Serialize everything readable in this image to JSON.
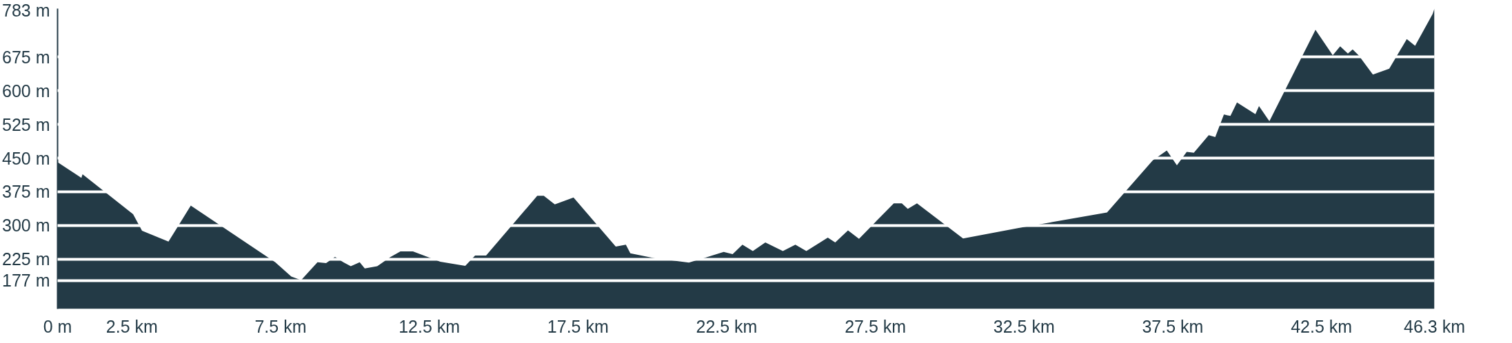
{
  "chart_data": {
    "type": "area",
    "x": [
      0,
      0.8,
      0.84,
      2.54,
      2.84,
      3.73,
      4.48,
      7.32,
      7.86,
      8.19,
      8.74,
      9.03,
      9.33,
      9.61,
      9.86,
      10.16,
      10.33,
      10.75,
      11.2,
      11.53,
      11.95,
      12.87,
      13.71,
      14.04,
      14.41,
      16.13,
      16.35,
      16.72,
      17.35,
      18.77,
      19.11,
      19.26,
      20.06,
      21.23,
      22.4,
      22.7,
      23.03,
      23.38,
      23.8,
      24.39,
      24.81,
      25.18,
      25.9,
      26.15,
      26.58,
      26.95,
      27.42,
      28.12,
      28.39,
      28.59,
      28.9,
      30.45,
      32.29,
      35.29,
      36.83,
      37.3,
      37.64,
      37.97,
      38.21,
      38.71,
      38.93,
      39.22,
      39.44,
      39.66,
      40.28,
      40.4,
      40.75,
      42.3,
      42.88,
      43.13,
      43.39,
      43.55,
      43.75,
      44.23,
      44.78,
      45.37,
      45.65,
      46.24,
      46.3
    ],
    "series": [
      {
        "color": "#233a46",
        "values": [
          441,
          406,
          414,
          325,
          288,
          264,
          344,
          218,
          186,
          178,
          218,
          216,
          230,
          218,
          209,
          218,
          204,
          209,
          230,
          242,
          242,
          219,
          210,
          233,
          233,
          366,
          366,
          347,
          362,
          253,
          257,
          238,
          227,
          217,
          241,
          236,
          257,
          243,
          262,
          243,
          257,
          243,
          273,
          262,
          289,
          270,
          302,
          349,
          349,
          337,
          349,
          271,
          294,
          329,
          445,
          467,
          434,
          464,
          462,
          501,
          497,
          547,
          544,
          574,
          548,
          566,
          532,
          736,
          679,
          699,
          683,
          692,
          679,
          636,
          649,
          715,
          700,
          771,
          783
        ]
      }
    ],
    "xlim": [
      0,
      46.3
    ],
    "ylim": [
      114,
      783
    ],
    "xticks": [
      {
        "value": 0,
        "label": "0 m"
      },
      {
        "value": 2.5,
        "label": "2.5 km"
      },
      {
        "value": 7.5,
        "label": "7.5 km"
      },
      {
        "value": 12.5,
        "label": "12.5 km"
      },
      {
        "value": 17.5,
        "label": "17.5 km"
      },
      {
        "value": 22.5,
        "label": "22.5 km"
      },
      {
        "value": 27.5,
        "label": "27.5 km"
      },
      {
        "value": 32.5,
        "label": "32.5 km"
      },
      {
        "value": 37.5,
        "label": "37.5 km"
      },
      {
        "value": 42.5,
        "label": "42.5 km"
      },
      {
        "value": 46.3,
        "label": "46.3 km"
      }
    ],
    "yticks": [
      {
        "value": 177,
        "label": "177 m"
      },
      {
        "value": 225,
        "label": "225 m"
      },
      {
        "value": 300,
        "label": "300 m"
      },
      {
        "value": 375,
        "label": "375 m"
      },
      {
        "value": 450,
        "label": "450 m"
      },
      {
        "value": 525,
        "label": "525 m"
      },
      {
        "value": 600,
        "label": "600 m"
      },
      {
        "value": 675,
        "label": "675 m"
      },
      {
        "value": 783,
        "label": "783 m"
      }
    ],
    "grid": "y"
  }
}
